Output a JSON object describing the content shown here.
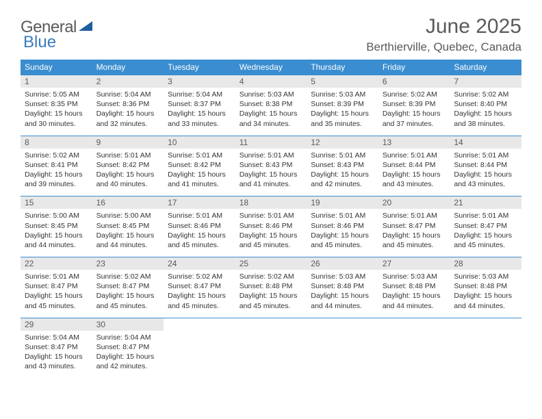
{
  "logo": {
    "text1": "General",
    "text2": "Blue",
    "color_general": "#5a5a5a",
    "color_blue": "#3a7bbf",
    "triangle_color": "#1f5f9c"
  },
  "title": "June 2025",
  "location": "Berthierville, Quebec, Canada",
  "header_bg": "#3a8dd0",
  "header_fg": "#ffffff",
  "daynum_bg": "#e8e8e8",
  "border_color": "#3a8dd0",
  "weekdays": [
    "Sunday",
    "Monday",
    "Tuesday",
    "Wednesday",
    "Thursday",
    "Friday",
    "Saturday"
  ],
  "weeks": [
    {
      "nums": [
        "1",
        "2",
        "3",
        "4",
        "5",
        "6",
        "7"
      ],
      "cells": [
        {
          "sunrise": "5:05 AM",
          "sunset": "8:35 PM",
          "daylight": "15 hours and 30 minutes."
        },
        {
          "sunrise": "5:04 AM",
          "sunset": "8:36 PM",
          "daylight": "15 hours and 32 minutes."
        },
        {
          "sunrise": "5:04 AM",
          "sunset": "8:37 PM",
          "daylight": "15 hours and 33 minutes."
        },
        {
          "sunrise": "5:03 AM",
          "sunset": "8:38 PM",
          "daylight": "15 hours and 34 minutes."
        },
        {
          "sunrise": "5:03 AM",
          "sunset": "8:39 PM",
          "daylight": "15 hours and 35 minutes."
        },
        {
          "sunrise": "5:02 AM",
          "sunset": "8:39 PM",
          "daylight": "15 hours and 37 minutes."
        },
        {
          "sunrise": "5:02 AM",
          "sunset": "8:40 PM",
          "daylight": "15 hours and 38 minutes."
        }
      ]
    },
    {
      "nums": [
        "8",
        "9",
        "10",
        "11",
        "12",
        "13",
        "14"
      ],
      "cells": [
        {
          "sunrise": "5:02 AM",
          "sunset": "8:41 PM",
          "daylight": "15 hours and 39 minutes."
        },
        {
          "sunrise": "5:01 AM",
          "sunset": "8:42 PM",
          "daylight": "15 hours and 40 minutes."
        },
        {
          "sunrise": "5:01 AM",
          "sunset": "8:42 PM",
          "daylight": "15 hours and 41 minutes."
        },
        {
          "sunrise": "5:01 AM",
          "sunset": "8:43 PM",
          "daylight": "15 hours and 41 minutes."
        },
        {
          "sunrise": "5:01 AM",
          "sunset": "8:43 PM",
          "daylight": "15 hours and 42 minutes."
        },
        {
          "sunrise": "5:01 AM",
          "sunset": "8:44 PM",
          "daylight": "15 hours and 43 minutes."
        },
        {
          "sunrise": "5:01 AM",
          "sunset": "8:44 PM",
          "daylight": "15 hours and 43 minutes."
        }
      ]
    },
    {
      "nums": [
        "15",
        "16",
        "17",
        "18",
        "19",
        "20",
        "21"
      ],
      "cells": [
        {
          "sunrise": "5:00 AM",
          "sunset": "8:45 PM",
          "daylight": "15 hours and 44 minutes."
        },
        {
          "sunrise": "5:00 AM",
          "sunset": "8:45 PM",
          "daylight": "15 hours and 44 minutes."
        },
        {
          "sunrise": "5:01 AM",
          "sunset": "8:46 PM",
          "daylight": "15 hours and 45 minutes."
        },
        {
          "sunrise": "5:01 AM",
          "sunset": "8:46 PM",
          "daylight": "15 hours and 45 minutes."
        },
        {
          "sunrise": "5:01 AM",
          "sunset": "8:46 PM",
          "daylight": "15 hours and 45 minutes."
        },
        {
          "sunrise": "5:01 AM",
          "sunset": "8:47 PM",
          "daylight": "15 hours and 45 minutes."
        },
        {
          "sunrise": "5:01 AM",
          "sunset": "8:47 PM",
          "daylight": "15 hours and 45 minutes."
        }
      ]
    },
    {
      "nums": [
        "22",
        "23",
        "24",
        "25",
        "26",
        "27",
        "28"
      ],
      "cells": [
        {
          "sunrise": "5:01 AM",
          "sunset": "8:47 PM",
          "daylight": "15 hours and 45 minutes."
        },
        {
          "sunrise": "5:02 AM",
          "sunset": "8:47 PM",
          "daylight": "15 hours and 45 minutes."
        },
        {
          "sunrise": "5:02 AM",
          "sunset": "8:47 PM",
          "daylight": "15 hours and 45 minutes."
        },
        {
          "sunrise": "5:02 AM",
          "sunset": "8:48 PM",
          "daylight": "15 hours and 45 minutes."
        },
        {
          "sunrise": "5:03 AM",
          "sunset": "8:48 PM",
          "daylight": "15 hours and 44 minutes."
        },
        {
          "sunrise": "5:03 AM",
          "sunset": "8:48 PM",
          "daylight": "15 hours and 44 minutes."
        },
        {
          "sunrise": "5:03 AM",
          "sunset": "8:48 PM",
          "daylight": "15 hours and 44 minutes."
        }
      ]
    },
    {
      "nums": [
        "29",
        "30",
        "",
        "",
        "",
        "",
        ""
      ],
      "cells": [
        {
          "sunrise": "5:04 AM",
          "sunset": "8:47 PM",
          "daylight": "15 hours and 43 minutes."
        },
        {
          "sunrise": "5:04 AM",
          "sunset": "8:47 PM",
          "daylight": "15 hours and 42 minutes."
        },
        null,
        null,
        null,
        null,
        null
      ]
    }
  ],
  "labels": {
    "sunrise": "Sunrise: ",
    "sunset": "Sunset: ",
    "daylight": "Daylight: "
  }
}
